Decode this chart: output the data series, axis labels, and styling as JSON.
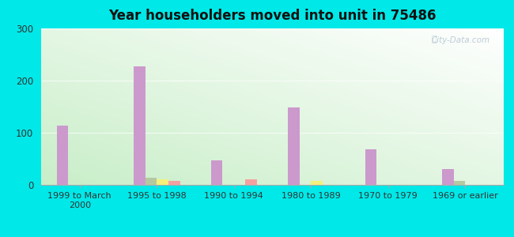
{
  "title": "Year householders moved into unit in 75486",
  "categories": [
    "1999 to March\n2000",
    "1995 to 1998",
    "1990 to 1994",
    "1980 to 1989",
    "1970 to 1979",
    "1969 or earlier"
  ],
  "series": {
    "White Non-Hispanic": [
      113,
      228,
      47,
      148,
      68,
      30
    ],
    "Black": [
      0,
      13,
      0,
      0,
      0,
      8
    ],
    "Two or More Races": [
      0,
      10,
      0,
      7,
      0,
      0
    ],
    "Hispanic or Latino": [
      0,
      8,
      11,
      0,
      0,
      0
    ]
  },
  "colors": {
    "White Non-Hispanic": "#cc99cc",
    "Black": "#b5c9a0",
    "Two or More Races": "#f5f07a",
    "Hispanic or Latino": "#f5a0a0"
  },
  "ylim": [
    0,
    300
  ],
  "yticks": [
    0,
    100,
    200,
    300
  ],
  "background_color": "#00e8e8",
  "bar_width": 0.15
}
